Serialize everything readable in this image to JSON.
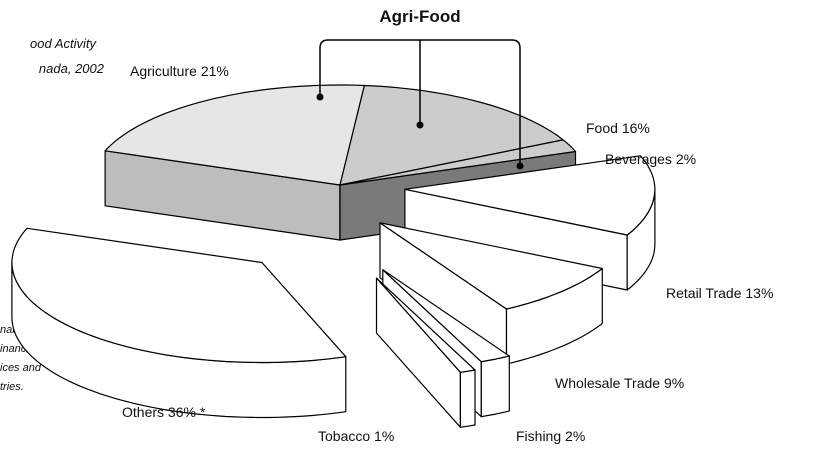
{
  "chart_data": {
    "type": "pie3d",
    "title_lines": [
      "ood Activity",
      "nada, 2002"
    ],
    "annotation": "Agri-Food",
    "categories": [
      "Agriculture",
      "Food",
      "Beverages",
      "Retail Trade",
      "Wholesale Trade",
      "Fishing",
      "Tobacco",
      "Others"
    ],
    "values": [
      21,
      16,
      2,
      13,
      9,
      2,
      1,
      36
    ],
    "value_labels": [
      "21%",
      "16%",
      "2%",
      "13%",
      "9%",
      "2%",
      "1%",
      "36%"
    ],
    "footnote_marker": "*",
    "colors": [
      "#e6e6e6",
      "#cccccc",
      "#cccccc",
      "#ffffff",
      "#ffffff",
      "#ffffff",
      "#ffffff",
      "#ffffff"
    ],
    "side_colors": [
      "#bdbdbd",
      "#9a9a9a",
      "#7a7a7a",
      "#ffffff",
      "#ffffff",
      "#ffffff",
      "#ffffff",
      "#ffffff"
    ],
    "footnote_lines": [
      "nable",
      "inancial",
      "ices and",
      "tries."
    ]
  }
}
